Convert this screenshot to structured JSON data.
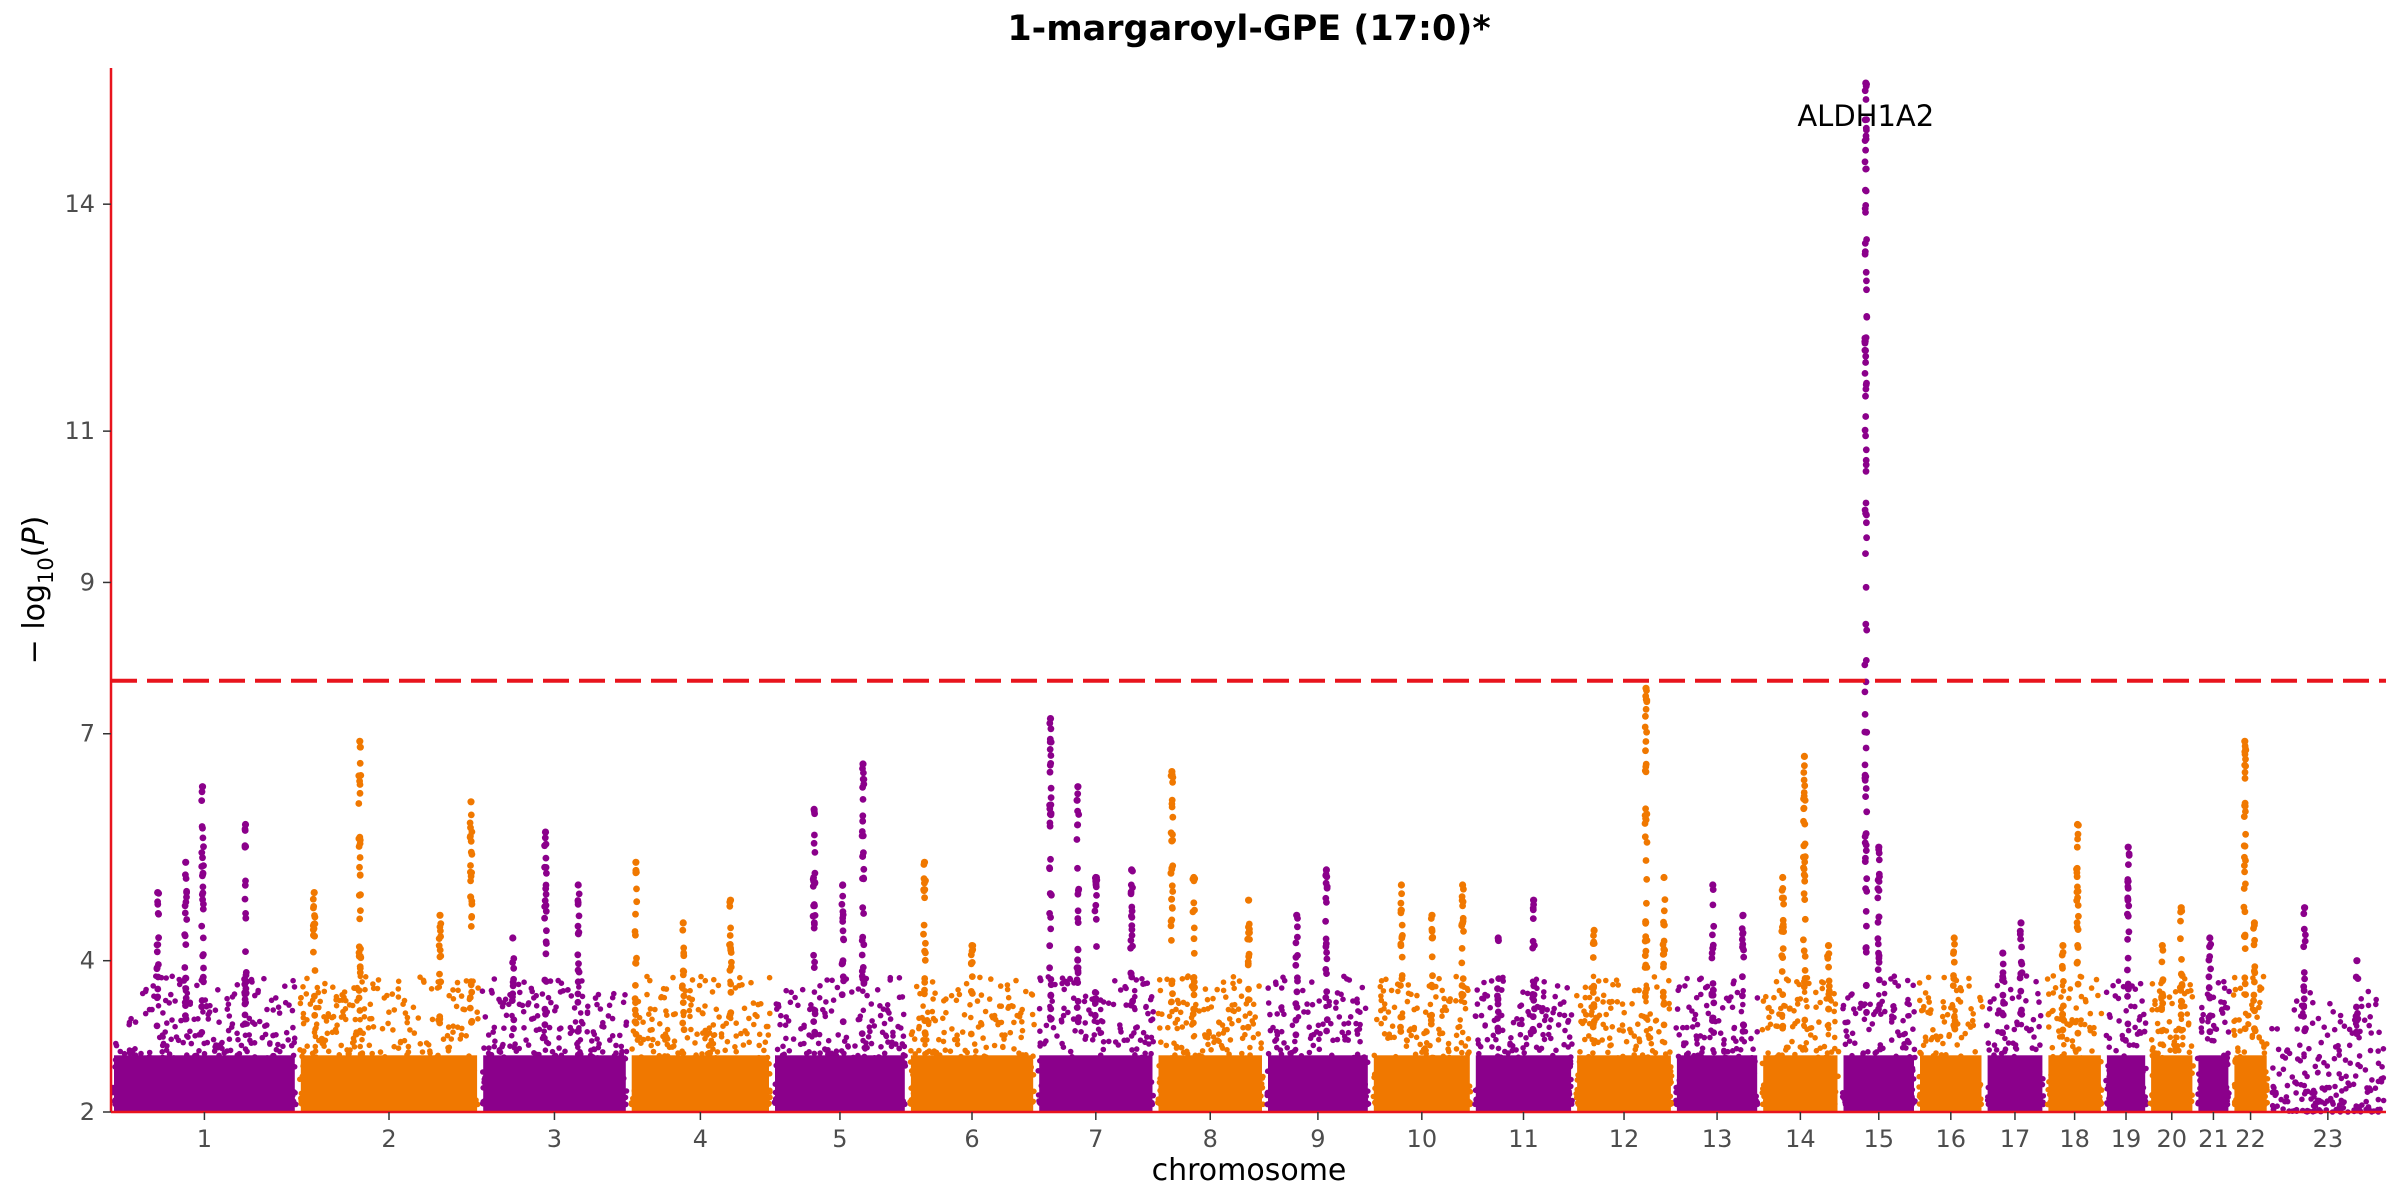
{
  "chart_data": {
    "type": "scatter",
    "title": "1-margaroyl-GPE (17:0)*",
    "xlabel": "chromosome",
    "ylabel": "−log10(P)",
    "ylim": [
      2,
      15.8
    ],
    "yticks": [
      2,
      4,
      7,
      9,
      11,
      14
    ],
    "significance_threshold": 7.7,
    "grid": false,
    "legend": "none",
    "colors": {
      "odd": "#8b008b",
      "even": "#f07800",
      "threshold": "#e8141d",
      "axis": "#e8141d"
    },
    "chromosomes": [
      {
        "label": "1",
        "span": 249,
        "peaks": [
          [
            0.72,
            5.8
          ],
          [
            0.4,
            5.3
          ],
          [
            0.49,
            6.3
          ],
          [
            0.25,
            4.9
          ]
        ]
      },
      {
        "label": "2",
        "span": 243,
        "peaks": [
          [
            0.34,
            6.9
          ],
          [
            0.09,
            4.9
          ],
          [
            0.95,
            6.1
          ],
          [
            0.78,
            4.6
          ]
        ]
      },
      {
        "label": "3",
        "span": 198,
        "peaks": [
          [
            0.44,
            5.7
          ],
          [
            0.66,
            5.0
          ],
          [
            0.22,
            4.3
          ]
        ]
      },
      {
        "label": "4",
        "span": 191,
        "peaks": [
          [
            0.05,
            5.3
          ],
          [
            0.71,
            4.8
          ],
          [
            0.38,
            4.5
          ]
        ]
      },
      {
        "label": "5",
        "span": 181,
        "peaks": [
          [
            0.67,
            6.6
          ],
          [
            0.31,
            6.0
          ],
          [
            0.52,
            5.0
          ]
        ]
      },
      {
        "label": "6",
        "span": 171,
        "peaks": [
          [
            0.13,
            5.3
          ],
          [
            0.5,
            4.2
          ]
        ]
      },
      {
        "label": "7",
        "span": 159,
        "peaks": [
          [
            0.12,
            7.2
          ],
          [
            0.35,
            6.3
          ],
          [
            0.5,
            5.1
          ],
          [
            0.8,
            5.2
          ]
        ]
      },
      {
        "label": "8",
        "span": 146,
        "peaks": [
          [
            0.15,
            6.5
          ],
          [
            0.35,
            5.1
          ],
          [
            0.85,
            4.8
          ]
        ]
      },
      {
        "label": "9",
        "span": 141,
        "peaks": [
          [
            0.58,
            5.2
          ],
          [
            0.3,
            4.6
          ]
        ]
      },
      {
        "label": "10",
        "span": 136,
        "peaks": [
          [
            0.9,
            5.0
          ],
          [
            0.3,
            5.0
          ],
          [
            0.6,
            4.6
          ]
        ]
      },
      {
        "label": "11",
        "span": 135,
        "peaks": [
          [
            0.6,
            4.8
          ],
          [
            0.25,
            4.3
          ]
        ]
      },
      {
        "label": "12",
        "span": 133,
        "peaks": [
          [
            0.72,
            7.6
          ],
          [
            0.9,
            5.1
          ],
          [
            0.2,
            4.4
          ]
        ]
      },
      {
        "label": "13",
        "span": 115,
        "peaks": [
          [
            0.45,
            5.0
          ],
          [
            0.8,
            4.6
          ]
        ]
      },
      {
        "label": "14",
        "span": 107,
        "peaks": [
          [
            0.55,
            6.7
          ],
          [
            0.28,
            5.1
          ],
          [
            0.85,
            4.2
          ]
        ]
      },
      {
        "label": "15",
        "span": 102,
        "peaks": [
          [
            0.33,
            15.6
          ],
          [
            0.5,
            5.5
          ]
        ]
      },
      {
        "label": "16",
        "span": 90,
        "peaks": [
          [
            0.55,
            4.3
          ]
        ]
      },
      {
        "label": "17",
        "span": 81,
        "peaks": [
          [
            0.6,
            4.5
          ],
          [
            0.3,
            4.1
          ]
        ]
      },
      {
        "label": "18",
        "span": 78,
        "peaks": [
          [
            0.55,
            5.8
          ],
          [
            0.3,
            4.2
          ]
        ]
      },
      {
        "label": "19",
        "span": 59,
        "peaks": [
          [
            0.55,
            5.5
          ]
        ]
      },
      {
        "label": "20",
        "span": 63,
        "peaks": [
          [
            0.7,
            4.7
          ],
          [
            0.3,
            4.2
          ]
        ]
      },
      {
        "label": "21",
        "span": 48,
        "peaks": [
          [
            0.4,
            4.3
          ]
        ]
      },
      {
        "label": "22",
        "span": 51,
        "peaks": [
          [
            0.35,
            6.9
          ],
          [
            0.6,
            4.5
          ]
        ]
      },
      {
        "label": "23",
        "span": 155,
        "peaks": [
          [
            0.3,
            4.7
          ],
          [
            0.75,
            4.0
          ]
        ]
      }
    ],
    "annotations": [
      {
        "label": "ALDH1A2",
        "chromosome": "15",
        "value": 15.6
      }
    ]
  }
}
